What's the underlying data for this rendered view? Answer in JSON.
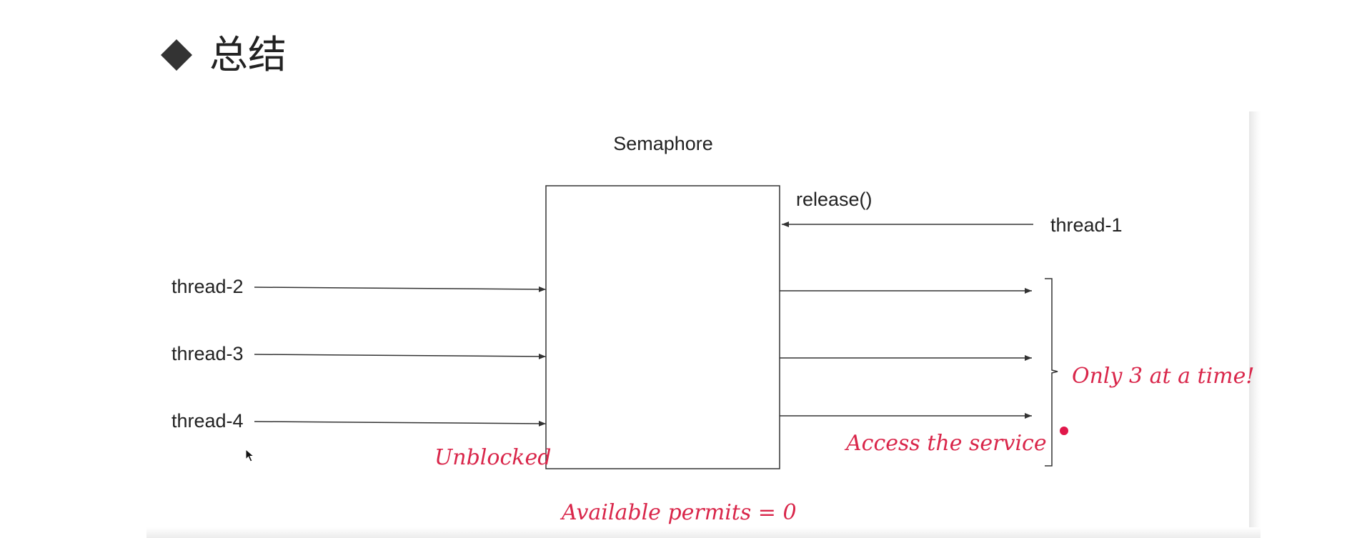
{
  "slide": {
    "heading": "总结"
  },
  "diagram": {
    "title": "Semaphore",
    "release_call": "release()",
    "incoming_thread": "thread-1",
    "waiting_threads": [
      "thread-2",
      "thread-3",
      "thread-4"
    ],
    "annotations": {
      "unblocked": "Unblocked",
      "access_service": "Access the service",
      "only_three": "Only 3 at a time!",
      "available_permits": "Available permits = 0"
    }
  },
  "colors": {
    "annotation": "#d9264a",
    "stroke": "#333333"
  }
}
